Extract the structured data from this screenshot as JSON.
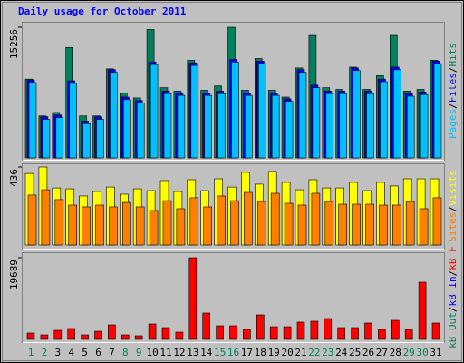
{
  "chart_data": [
    {
      "type": "bar",
      "title": "Daily usage for October 2011",
      "title_color": "#0000ff",
      "ylim": [
        0,
        15256
      ],
      "yticks": [
        15256
      ],
      "label_separator": "/",
      "series": [
        {
          "name": "Hits",
          "color": "#00805c",
          "values": [
            9200,
            4900,
            5300,
            12900,
            4900,
            4900,
            10400,
            7600,
            7000,
            15000,
            8200,
            7800,
            11400,
            7900,
            8400,
            15256,
            7900,
            11600,
            7900,
            7100,
            10500,
            14300,
            8200,
            8000,
            10600,
            8000,
            9600,
            14300,
            7800,
            8000,
            11400
          ]
        },
        {
          "name": "Files",
          "color": "#0000ff",
          "values": [
            9100,
            4800,
            5000,
            9000,
            4300,
            4800,
            10300,
            7100,
            6700,
            11200,
            7800,
            7600,
            11100,
            7600,
            7800,
            11500,
            7600,
            11300,
            7600,
            6900,
            10300,
            8500,
            7800,
            7800,
            10500,
            7800,
            9200,
            10600,
            7500,
            7700,
            11300
          ]
        },
        {
          "name": "Pages",
          "color": "#00c0ff",
          "values": [
            8800,
            4500,
            4700,
            8700,
            4000,
            4500,
            10000,
            6800,
            6400,
            10900,
            7500,
            7300,
            10800,
            7300,
            7500,
            11200,
            7300,
            11000,
            7300,
            6600,
            10000,
            8200,
            7500,
            7500,
            10200,
            7500,
            8900,
            10300,
            7200,
            7400,
            11000
          ]
        }
      ]
    },
    {
      "type": "bar",
      "ylim": [
        0,
        436
      ],
      "yticks": [
        436
      ],
      "label_separator": "/",
      "series": [
        {
          "name": "Visits",
          "color": "#ffff00",
          "values": [
            400,
            436,
            319,
            314,
            274,
            299,
            324,
            284,
            314,
            304,
            360,
            299,
            365,
            304,
            370,
            324,
            406,
            340,
            411,
            350,
            309,
            365,
            319,
            319,
            350,
            304,
            350,
            330,
            370,
            370,
            370
          ]
        },
        {
          "name": "Sites",
          "color": "#ff8000",
          "values": [
            279,
            309,
            254,
            223,
            213,
            223,
            213,
            238,
            213,
            193,
            248,
            203,
            264,
            213,
            274,
            248,
            294,
            243,
            289,
            233,
            223,
            289,
            243,
            228,
            228,
            228,
            223,
            223,
            243,
            203,
            264
          ]
        }
      ]
    },
    {
      "type": "bar",
      "ylim": [
        0,
        19689
      ],
      "yticks": [
        19689
      ],
      "label_separator": "/",
      "categories": [
        "1",
        "2",
        "3",
        "4",
        "5",
        "6",
        "7",
        "8",
        "9",
        "10",
        "11",
        "12",
        "13",
        "14",
        "15",
        "16",
        "17",
        "18",
        "19",
        "20",
        "21",
        "22",
        "23",
        "24",
        "25",
        "26",
        "27",
        "28",
        "29",
        "30",
        "31"
      ],
      "category_colors": [
        "#00805c",
        "#00805c",
        "#000000",
        "#000000",
        "#000000",
        "#000000",
        "#000000",
        "#00805c",
        "#00805c",
        "#000000",
        "#000000",
        "#000000",
        "#000000",
        "#000000",
        "#00805c",
        "#00805c",
        "#000000",
        "#000000",
        "#000000",
        "#000000",
        "#000000",
        "#00805c",
        "#00805c",
        "#000000",
        "#000000",
        "#000000",
        "#000000",
        "#000000",
        "#00805c",
        "#00805c",
        "#000000"
      ],
      "series": [
        {
          "name": "kB F",
          "color": "#ff0000",
          "values": [
            1530,
            1090,
            2190,
            2630,
            1090,
            1970,
            3500,
            1090,
            875,
            3720,
            2840,
            1750,
            19689,
            6350,
            3280,
            3280,
            2410,
            5910,
            3060,
            3060,
            4160,
            4380,
            5030,
            2840,
            2840,
            3940,
            2410,
            4590,
            2410,
            13780,
            3940
          ]
        },
        {
          "name": "kB In",
          "color": "#0000ff",
          "legend_only": true
        },
        {
          "name": "kB Out",
          "color": "#00805c",
          "legend_only": true
        }
      ]
    }
  ]
}
